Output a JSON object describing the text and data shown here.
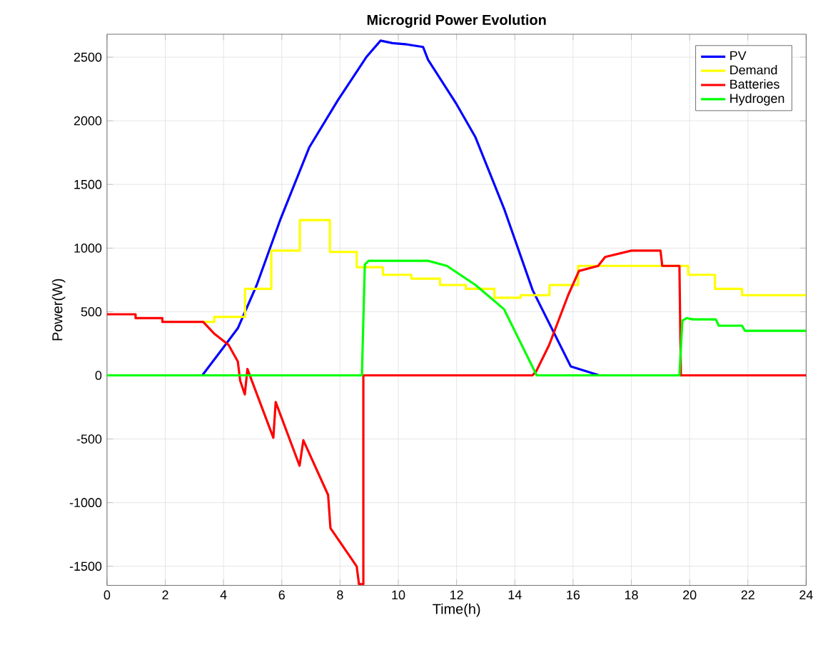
{
  "chart_data": {
    "type": "line",
    "title": "Microgrid Power Evolution",
    "xlabel": "Time(h)",
    "ylabel": "Power(W)",
    "xlim": [
      0,
      24
    ],
    "xticks": [
      0,
      2,
      4,
      6,
      8,
      10,
      12,
      14,
      16,
      18,
      20,
      22,
      24
    ],
    "ylim": [
      -1650,
      2680
    ],
    "yticks": [
      -1500,
      -1000,
      -500,
      0,
      500,
      1000,
      1500,
      2000,
      2500
    ],
    "grid": true,
    "legend": "top right",
    "marker": "none",
    "line_style": "solid",
    "series": [
      {
        "name": "PV",
        "color": "#0000ff",
        "x": [
          3.27,
          4.0,
          4.49,
          5.14,
          5.96,
          6.94,
          7.92,
          8.9,
          9.39,
          9.8,
          10.3,
          10.85,
          11.02,
          12.0,
          12.65,
          13.63,
          14.61,
          15.92,
          16.9,
          24
        ],
        "values": [
          0,
          220,
          370,
          710,
          1230,
          1790,
          2160,
          2500,
          2630,
          2610,
          2600,
          2580,
          2480,
          2130,
          1870,
          1310,
          670,
          70,
          0,
          0
        ]
      },
      {
        "name": "Demand",
        "color": "#ffff00",
        "x": [
          3.3,
          3.68,
          3.68,
          4.74,
          4.74,
          5.64,
          5.64,
          6.62,
          6.62,
          7.65,
          7.65,
          8.57,
          8.57,
          9.47,
          9.47,
          10.45,
          10.45,
          11.43,
          11.43,
          12.32,
          12.32,
          13.3,
          13.3,
          14.2,
          14.2,
          15.19,
          15.19,
          16.17,
          16.17,
          19.95,
          19.95,
          20.87,
          20.87,
          21.8,
          21.8,
          24
        ],
        "values": [
          420,
          420,
          460,
          460,
          680,
          680,
          980,
          980,
          1220,
          1220,
          970,
          970,
          850,
          850,
          790,
          790,
          760,
          760,
          710,
          710,
          680,
          680,
          610,
          610,
          630,
          630,
          710,
          710,
          860,
          860,
          790,
          790,
          680,
          680,
          630,
          630
        ]
      },
      {
        "name": "Batteries",
        "color": "#ff0000",
        "x": [
          0,
          0.98,
          0.98,
          1.9,
          1.9,
          3.3,
          3.67,
          4.17,
          4.49,
          4.57,
          4.73,
          4.82,
          5.71,
          5.79,
          6.61,
          6.74,
          7.59,
          7.67,
          8.57,
          8.65,
          8.8,
          8.8,
          14.6,
          14.73,
          15.18,
          15.83,
          16.2,
          16.86,
          17.1,
          18.0,
          19.0,
          19.06,
          19.65,
          19.7,
          24
        ],
        "values": [
          480,
          480,
          450,
          450,
          420,
          420,
          330,
          240,
          110,
          -40,
          -150,
          50,
          -490,
          -210,
          -710,
          -510,
          -940,
          -1200,
          -1500,
          -1640,
          -1640,
          0,
          0,
          30,
          240,
          630,
          820,
          860,
          930,
          980,
          980,
          860,
          860,
          0,
          0
        ]
      },
      {
        "name": "Hydrogen",
        "color": "#00ff00",
        "x": [
          0,
          8.75,
          8.85,
          8.98,
          11.02,
          11.67,
          12.65,
          13.63,
          14.75,
          19.65,
          19.75,
          19.9,
          20.1,
          20.9,
          21.0,
          21.8,
          21.9,
          24
        ],
        "values": [
          0,
          0,
          870,
          900,
          900,
          860,
          710,
          520,
          0,
          0,
          430,
          450,
          440,
          440,
          390,
          390,
          350,
          350
        ]
      }
    ]
  }
}
